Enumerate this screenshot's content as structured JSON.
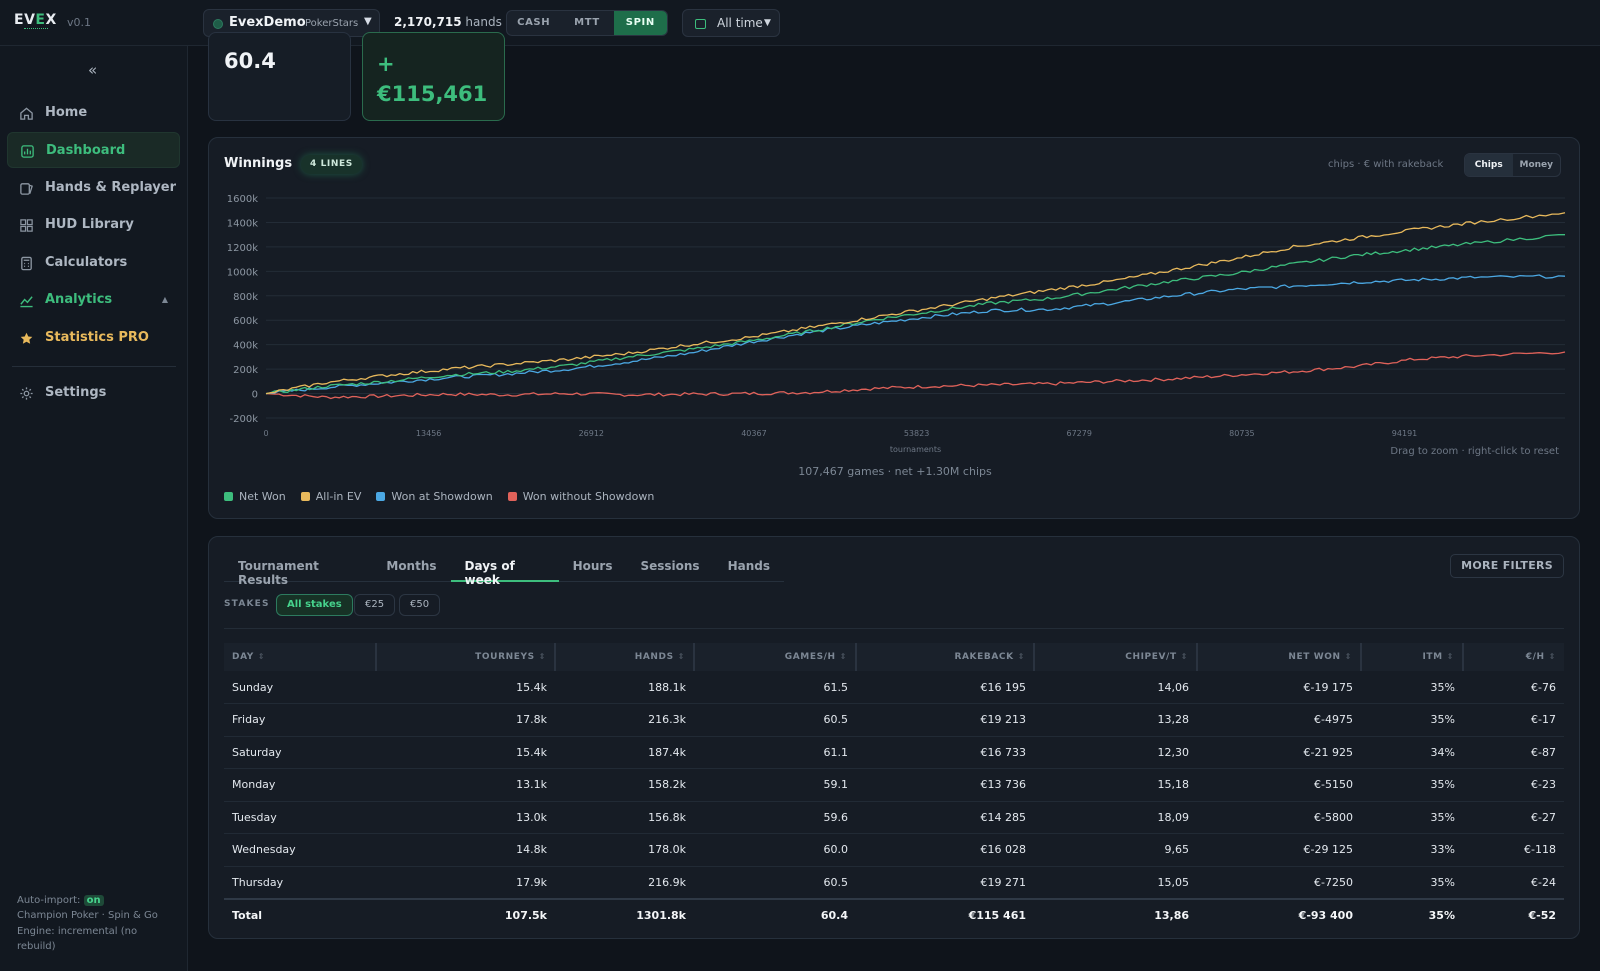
{
  "app": {
    "logo_left": "EV",
    "logo_accent": "E",
    "logo_right": "X",
    "version": "v0.1"
  },
  "account": {
    "name": "EvexDemo",
    "site": "PokerStars"
  },
  "hands_count": {
    "value": "2,170,715",
    "label": "hands"
  },
  "modes": [
    {
      "label": "CASH",
      "active": false
    },
    {
      "label": "MTT",
      "active": false
    },
    {
      "label": "SPIN",
      "active": true
    }
  ],
  "date_filter": {
    "label": "All time"
  },
  "sidebar": {
    "collapse_label": "«",
    "items": [
      {
        "label": "Home",
        "icon": "home-icon"
      },
      {
        "label": "Dashboard",
        "icon": "dashboard-icon",
        "active": true
      },
      {
        "label": "Hands & Replayer",
        "icon": "cards-icon"
      },
      {
        "label": "HUD Library",
        "icon": "grid-icon"
      },
      {
        "label": "Calculators",
        "icon": "calculator-icon"
      },
      {
        "label": "Analytics",
        "icon": "chart-line-icon",
        "expander": "▲"
      },
      {
        "label": "Statistics PRO",
        "icon": "star-icon"
      },
      {
        "label": "Settings",
        "icon": "gear-icon"
      }
    ],
    "footer": {
      "auto_import_label": "Auto-import:",
      "auto_import_state": "on",
      "room_line": "Champion Poker · Spin & Go",
      "engine_line": "Engine: incremental (no rebuild)"
    }
  },
  "kpis": [
    {
      "value": "60.4"
    },
    {
      "value": "+ €115,461"
    }
  ],
  "chart_card": {
    "title": "Winnings",
    "badge": "4 LINES",
    "unit_note": "chips · € with rakeback",
    "toggle": [
      {
        "label": "Chips",
        "active": true
      },
      {
        "label": "Money",
        "active": false
      }
    ],
    "summary": "107,467 games · net +1.30M chips",
    "zoom_hint": "Drag to zoom · right-click to reset"
  },
  "chart_data": {
    "type": "line",
    "title": "Winnings",
    "xlabel": "tournaments",
    "ylabel": "",
    "xlim": [
      0,
      107467
    ],
    "ylim": [
      -200000,
      1600000
    ],
    "x_ticks": [
      0,
      13456,
      26912,
      40367,
      53823,
      67279,
      80735,
      94191
    ],
    "y_ticks": [
      -200000,
      0,
      200000,
      400000,
      600000,
      800000,
      1000000,
      1200000,
      1400000,
      1600000
    ],
    "y_tick_labels": [
      "-200k",
      "0",
      "200k",
      "400k",
      "600k",
      "800k",
      "1000k",
      "1200k",
      "1400k",
      "1600k"
    ],
    "grid": true,
    "legend_position": "bottom-left",
    "x": [
      0,
      5000,
      10000,
      15000,
      20000,
      25000,
      30000,
      35000,
      40000,
      45000,
      50000,
      55000,
      60000,
      65000,
      70000,
      75000,
      80000,
      85000,
      90000,
      95000,
      100000,
      107467
    ],
    "series": [
      {
        "name": "Net Won",
        "color": "#3dbd7d",
        "values": [
          0,
          60000,
          100000,
          150000,
          180000,
          230000,
          300000,
          360000,
          430000,
          510000,
          600000,
          670000,
          740000,
          780000,
          850000,
          920000,
          980000,
          1060000,
          1130000,
          1180000,
          1230000,
          1300000
        ]
      },
      {
        "name": "All-in EV",
        "color": "#e8b95c",
        "values": [
          0,
          90000,
          150000,
          200000,
          240000,
          280000,
          330000,
          400000,
          460000,
          540000,
          620000,
          700000,
          780000,
          850000,
          920000,
          1010000,
          1100000,
          1200000,
          1270000,
          1340000,
          1400000,
          1480000
        ]
      },
      {
        "name": "Won at Showdown",
        "color": "#4ba8e3",
        "values": [
          0,
          50000,
          90000,
          130000,
          160000,
          200000,
          260000,
          330000,
          420000,
          500000,
          570000,
          630000,
          680000,
          690000,
          740000,
          800000,
          850000,
          880000,
          910000,
          930000,
          950000,
          960000
        ]
      },
      {
        "name": "Won without Showdown",
        "color": "#e0625a",
        "values": [
          0,
          -30000,
          -20000,
          -5000,
          -10000,
          0,
          -10000,
          -5000,
          0,
          10000,
          40000,
          60000,
          70000,
          80000,
          100000,
          120000,
          150000,
          180000,
          220000,
          280000,
          310000,
          340000
        ]
      }
    ]
  },
  "table_card": {
    "tabs": [
      {
        "label": "Tournament Results",
        "active": false
      },
      {
        "label": "Months",
        "active": false
      },
      {
        "label": "Days of week",
        "active": true
      },
      {
        "label": "Hours",
        "active": false
      },
      {
        "label": "Sessions",
        "active": false
      },
      {
        "label": "Hands",
        "active": false
      }
    ],
    "more_filters": "MORE FILTERS",
    "stakes_label": "STAKES",
    "stakes": [
      {
        "label": "All stakes",
        "active": true
      },
      {
        "label": "€25",
        "active": false
      },
      {
        "label": "€50",
        "active": false
      }
    ],
    "sort_glyph": "⇕",
    "columns": [
      "DAY",
      "TOURNEYS",
      "HANDS",
      "GAMES/H",
      "RAKEBACK",
      "CHIPEV/T",
      "NET WON",
      "ITM",
      "€/H"
    ],
    "rows": [
      [
        "Sunday",
        "15.4k",
        "188.1k",
        "61.5",
        "€16 195",
        "14,06",
        "€-19 175",
        "35%",
        "€-76"
      ],
      [
        "Friday",
        "17.8k",
        "216.3k",
        "60.5",
        "€19 213",
        "13,28",
        "€-4975",
        "35%",
        "€-17"
      ],
      [
        "Saturday",
        "15.4k",
        "187.4k",
        "61.1",
        "€16 733",
        "12,30",
        "€-21 925",
        "34%",
        "€-87"
      ],
      [
        "Monday",
        "13.1k",
        "158.2k",
        "59.1",
        "€13 736",
        "15,18",
        "€-5150",
        "35%",
        "€-23"
      ],
      [
        "Tuesday",
        "13.0k",
        "156.8k",
        "59.6",
        "€14 285",
        "18,09",
        "€-5800",
        "35%",
        "€-27"
      ],
      [
        "Wednesday",
        "14.8k",
        "178.0k",
        "60.0",
        "€16 028",
        "9,65",
        "€-29 125",
        "33%",
        "€-118"
      ],
      [
        "Thursday",
        "17.9k",
        "216.9k",
        "60.5",
        "€19 271",
        "15,05",
        "€-7250",
        "35%",
        "€-24"
      ]
    ],
    "total": [
      "Total",
      "107.5k",
      "1301.8k",
      "60.4",
      "€115 461",
      "13,86",
      "€-93 400",
      "35%",
      "€-52"
    ]
  }
}
